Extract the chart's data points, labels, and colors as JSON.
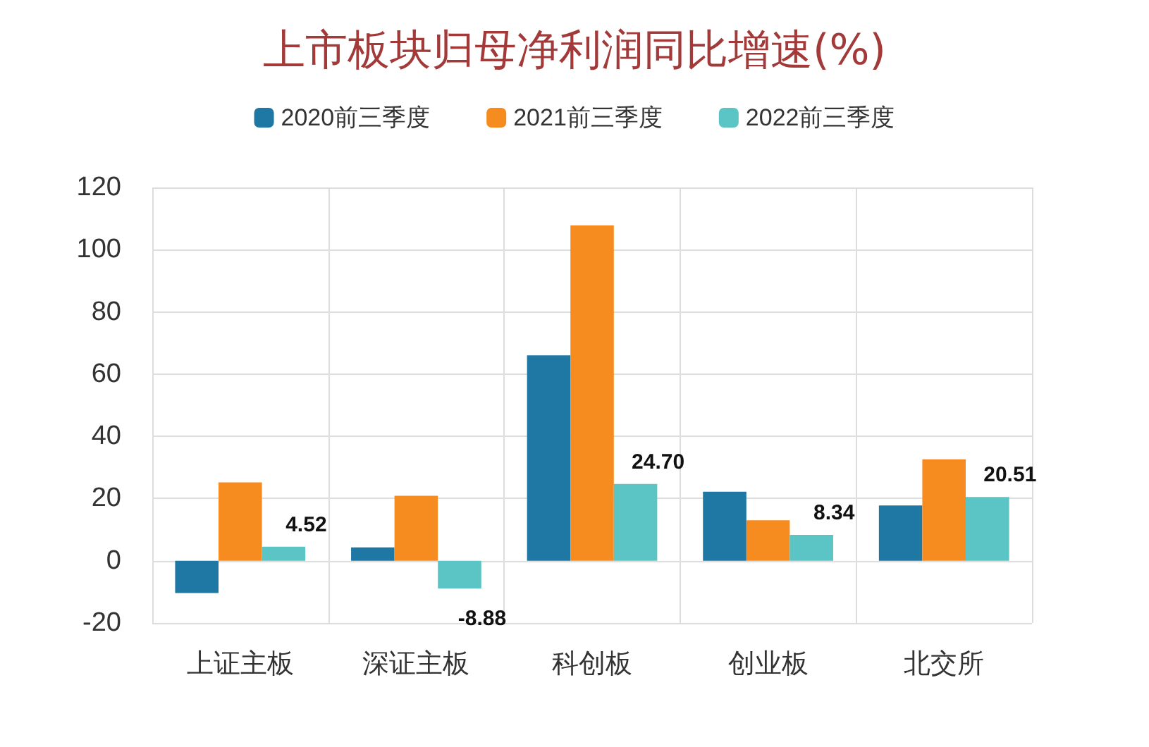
{
  "chart_data": {
    "type": "bar",
    "title": "上市板块归母净利润同比增速(%)",
    "categories": [
      "上证主板",
      "深证主板",
      "科创板",
      "创业板",
      "北交所"
    ],
    "series": [
      {
        "name": "2020前三季度",
        "color": "#1f77a3",
        "values": [
          -10.4,
          4.3,
          66,
          22.2,
          17.8
        ]
      },
      {
        "name": "2021前三季度",
        "color": "#f68b1f",
        "values": [
          25.2,
          20.9,
          107.8,
          13,
          32.6
        ]
      },
      {
        "name": "2022前三季度",
        "color": "#5bc4c4",
        "values": [
          4.52,
          -8.88,
          24.7,
          8.34,
          20.51
        ],
        "value_labels": [
          "4.52",
          "-8.88",
          "24.70",
          "8.34",
          "20.51"
        ]
      }
    ],
    "ylim": [
      -20,
      120
    ],
    "yticks": [
      -20,
      0,
      20,
      40,
      60,
      80,
      100,
      120
    ],
    "grid": true,
    "legend": "top"
  }
}
